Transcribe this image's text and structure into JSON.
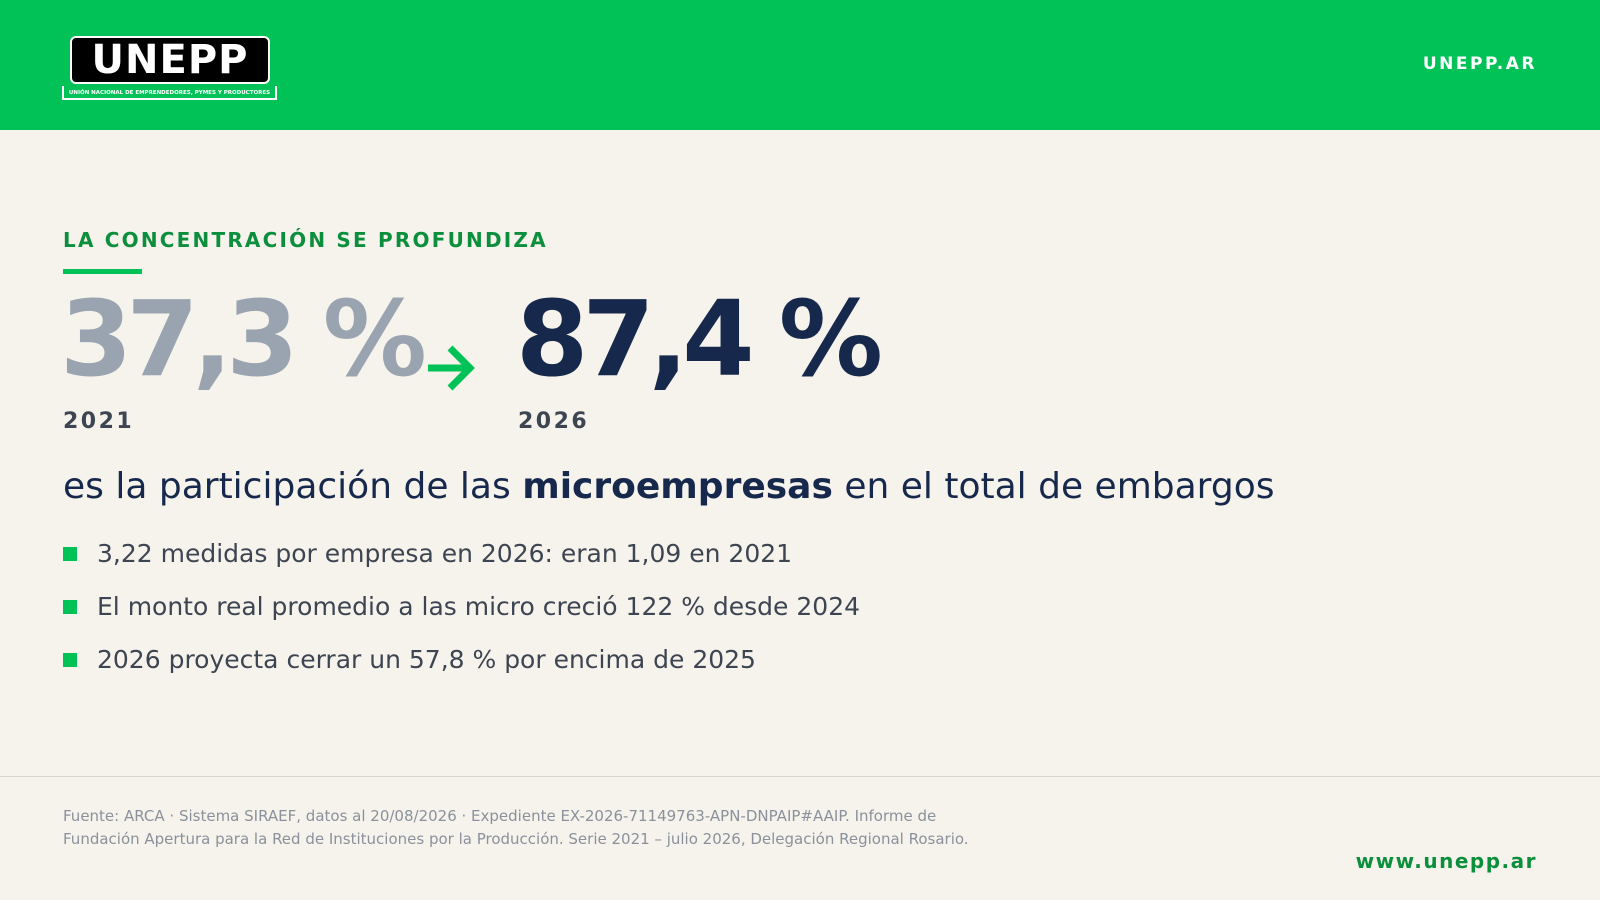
{
  "header": {
    "logo_text": "UNEPP",
    "logo_subtitle": "UNIÓN NACIONAL DE EMPRENDEDORES, PYMES Y PRODUCTORES",
    "domain": "UNEPP.AR",
    "background_color": "#00c257"
  },
  "kicker": "LA CONCENTRACIÓN SE PROFUNDIZA",
  "stats": {
    "before": {
      "value": "37,3 %",
      "year": "2021"
    },
    "after": {
      "value": "87,4 %",
      "year": "2026"
    },
    "arrow_icon": "arrow-right-icon"
  },
  "headline": {
    "prefix": "es la participación de las ",
    "emphasis": "microempresas",
    "suffix": " en el total de embargos"
  },
  "bullets": [
    "3,22 medidas por empresa en 2026: eran 1,09 en 2021",
    "El monto real promedio a las micro creció 122 % desde 2024",
    "2026 proyecta cerrar un 57,8 % por encima de 2025"
  ],
  "footer": {
    "source": "Fuente: ARCA · Sistema SIRAEF, datos al 20/08/2026 · Expediente EX-2026-71149763-APN-DNPAIP#AAIP. Informe de Fundación Apertura para la Red de Instituciones por la Producción. Serie 2021 – julio 2026, Delegación Regional Rosario.",
    "url": "www.unepp.ar"
  },
  "colors": {
    "accent_green": "#00c257",
    "dark_green": "#0b8f3c",
    "navy": "#16284b",
    "muted_gray": "#9aa4b1",
    "background": "#f6f3ec"
  }
}
